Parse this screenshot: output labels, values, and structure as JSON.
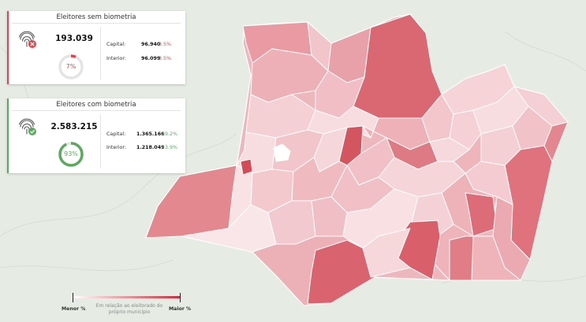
{
  "cards": {
    "sem": {
      "title": "Eleitores sem biometria",
      "total": "193.039",
      "percent": "7%",
      "percent_value": 0.07,
      "capital_label": "Capital:",
      "capital_value": "96.940",
      "capital_pct": "3.5%",
      "interior_label": "Interior:",
      "interior_value": "96.099",
      "interior_pct": "3.5%",
      "icon": "fingerprint-x-icon",
      "accent": "#e0454f"
    },
    "com": {
      "title": "Eleitores com biometria",
      "total": "2.583.215",
      "percent": "93%",
      "percent_value": 0.93,
      "capital_label": "Capital:",
      "capital_value": "1.365.166",
      "capital_pct": "49.2%",
      "interior_label": "Interior:",
      "interior_value": "1.218.049",
      "interior_pct": "43.9%",
      "icon": "fingerprint-check-icon",
      "accent": "#5caa5e"
    }
  },
  "legend": {
    "min_label": "Menor %",
    "max_label": "Maior %",
    "caption": "Em relação ao eleitorado do próprio município",
    "color_min": "#ffffff",
    "color_max": "#c9303f"
  }
}
